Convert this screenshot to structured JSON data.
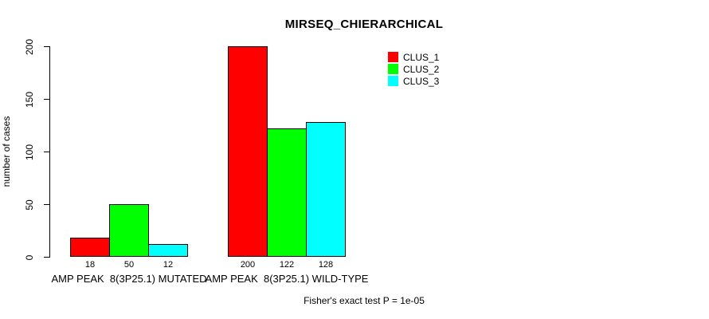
{
  "chart_data": {
    "type": "bar",
    "title": "MIRSEQ_CHIERARCHICAL",
    "ylabel": "number of cases",
    "ylim": [
      0,
      200
    ],
    "yticks": [
      0,
      50,
      100,
      150,
      200
    ],
    "categories": [
      "AMP PEAK  8(3P25.1) MUTATED",
      "AMP PEAK  8(3P25.1) WILD-TYPE"
    ],
    "series": [
      {
        "name": "CLUS_1",
        "color": "#ff0000",
        "values": [
          18,
          200
        ]
      },
      {
        "name": "CLUS_2",
        "color": "#00ff00",
        "values": [
          50,
          122
        ]
      },
      {
        "name": "CLUS_3",
        "color": "#00ffff",
        "values": [
          12,
          128
        ]
      }
    ],
    "legend": {
      "position": "top-right",
      "entries": [
        {
          "label": "CLUS_1",
          "color": "#ff0000"
        },
        {
          "label": "CLUS_2",
          "color": "#00ff00"
        },
        {
          "label": "CLUS_3",
          "color": "#00ffff"
        }
      ]
    },
    "footnote": "Fisher's exact test P = 1e-05",
    "grid": false,
    "background": "#ffffff",
    "axis_color": "#000000"
  }
}
